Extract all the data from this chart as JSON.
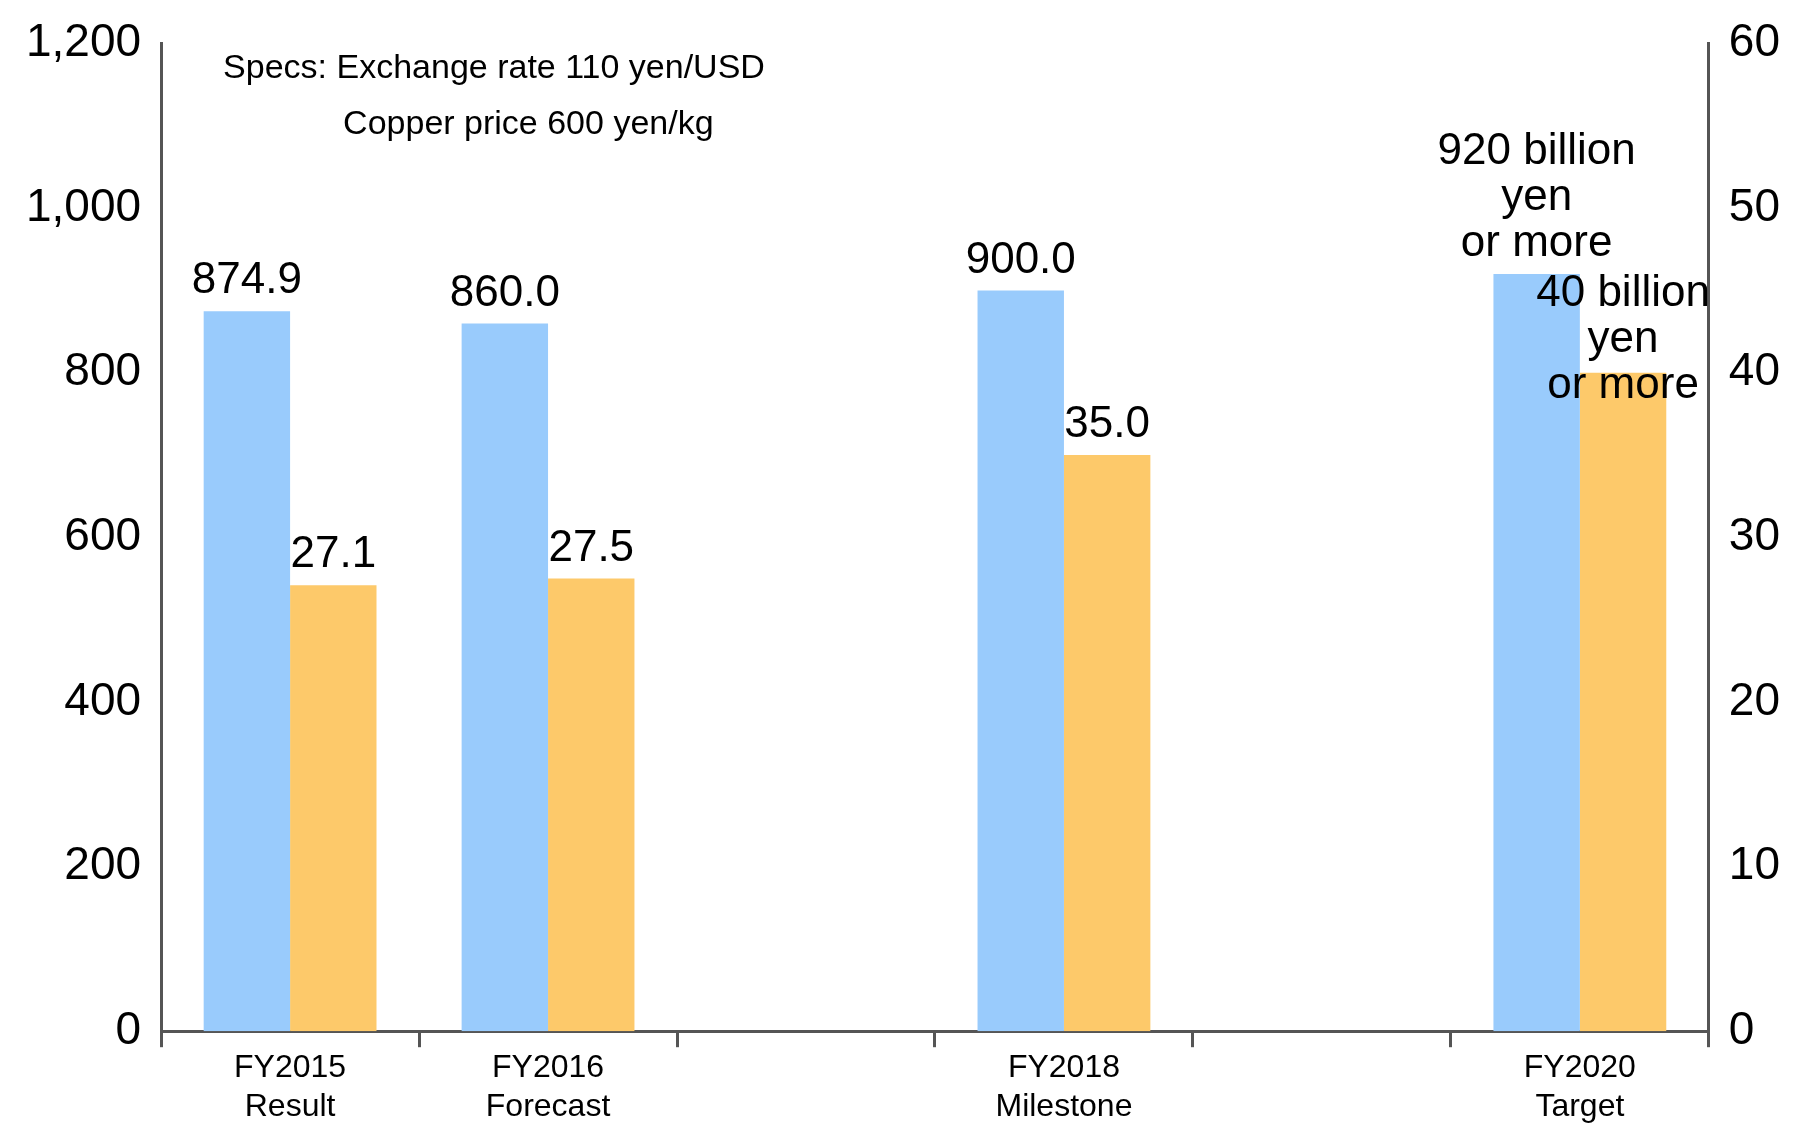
{
  "chart_data": {
    "type": "bar",
    "categories": [
      "FY2015 Result",
      "FY2016 Forecast",
      null,
      "FY2018 Milestone",
      null,
      "FY2020 Target"
    ],
    "series": [
      {
        "color": "#99cbfc",
        "values": [
          874.9,
          860.0,
          null,
          900.0,
          null,
          920
        ],
        "value_labels": [
          "874.9",
          "860.0",
          null,
          "900.0",
          null,
          "920 billion\nyen\nor more"
        ]
      },
      {
        "color": "#fdc96a",
        "axis": "y2",
        "values": [
          27.1,
          27.5,
          null,
          35.0,
          null,
          40
        ],
        "value_labels": [
          "27.1",
          "27.5",
          null,
          "35.0",
          null,
          "40 billion\nyen\nor more"
        ]
      }
    ],
    "ylim": [
      0,
      1200
    ],
    "yticks": [
      {
        "value": 0,
        "label": "0"
      },
      {
        "value": 200,
        "label": "200"
      },
      {
        "value": 400,
        "label": "400"
      },
      {
        "value": 600,
        "label": "600"
      },
      {
        "value": 800,
        "label": "800"
      },
      {
        "value": 1000,
        "label": "1,000"
      },
      {
        "value": 1200,
        "label": "1,200"
      }
    ],
    "y2lim": [
      0,
      60
    ],
    "y2ticks": [
      0,
      10,
      20,
      30,
      40,
      50,
      60
    ],
    "annotations": [
      "Specs: Exchange rate 110 yen/USD",
      "Copper price 600 yen/kg"
    ],
    "grid": false,
    "legend": false
  }
}
